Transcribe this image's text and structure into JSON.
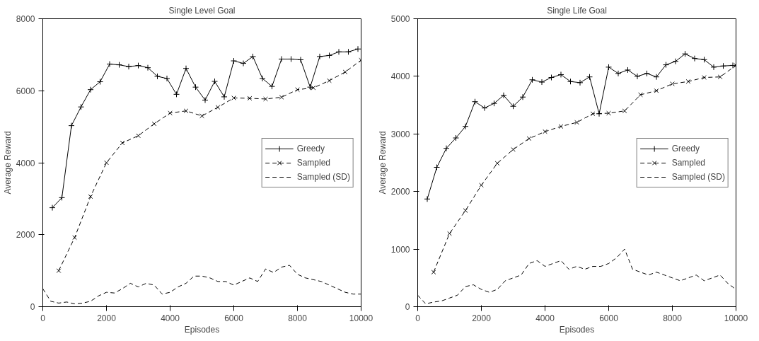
{
  "chart_data": [
    {
      "type": "line",
      "title": "Single Level Goal",
      "xlabel": "Episodes",
      "ylabel": "Average Reward",
      "xlim": [
        0,
        10000
      ],
      "ylim": [
        0,
        8000
      ],
      "xticks": [
        0,
        2000,
        4000,
        6000,
        8000,
        10000
      ],
      "yticks": [
        0,
        2000,
        4000,
        6000,
        8000
      ],
      "grid": false,
      "legend": "right",
      "series": [
        {
          "name": "Greedy",
          "color": "#000000",
          "marker": "cross",
          "line_style": "solid",
          "x": [
            300,
            600,
            900,
            1200,
            1500,
            1800,
            2100,
            2400,
            2700,
            3000,
            3300,
            3600,
            3900,
            4200,
            4500,
            4800,
            5100,
            5400,
            5700,
            6000,
            6300,
            6600,
            6900,
            7200,
            7500,
            7800,
            8100,
            8400,
            8700,
            9000,
            9300,
            9600,
            9900
          ],
          "values": [
            2750,
            3030,
            5030,
            5550,
            6030,
            6250,
            6740,
            6720,
            6670,
            6700,
            6640,
            6400,
            6340,
            5900,
            6620,
            6100,
            5740,
            6260,
            5830,
            6830,
            6760,
            6950,
            6340,
            6120,
            6880,
            6880,
            6860,
            6100,
            6950,
            6980,
            7080,
            7080,
            7160
          ]
        },
        {
          "name": "Sampled",
          "color": "#000000",
          "marker": "x",
          "line_style": "dashed",
          "x": [
            500,
            1000,
            1500,
            2000,
            2500,
            3000,
            3500,
            4000,
            4500,
            5000,
            5500,
            6000,
            6500,
            7000,
            7500,
            8000,
            8500,
            9000,
            9500,
            10000
          ],
          "values": [
            1000,
            1920,
            3060,
            4000,
            4550,
            4750,
            5080,
            5380,
            5440,
            5300,
            5540,
            5800,
            5790,
            5770,
            5820,
            6030,
            6080,
            6280,
            6520,
            6850
          ]
        },
        {
          "name": "Sampled (SD)",
          "color": "#000000",
          "marker": "none",
          "line_style": "dashed",
          "x": [
            0,
            250,
            500,
            750,
            1000,
            1250,
            1500,
            1750,
            2000,
            2250,
            2500,
            2750,
            3000,
            3250,
            3500,
            3750,
            4000,
            4250,
            4500,
            4750,
            5000,
            5250,
            5500,
            5750,
            6000,
            6250,
            6500,
            6750,
            7000,
            7250,
            7500,
            7750,
            8000,
            8250,
            8500,
            8750,
            9000,
            9250,
            9500,
            9750,
            10000
          ],
          "values": [
            500,
            150,
            100,
            130,
            80,
            100,
            150,
            300,
            400,
            380,
            500,
            650,
            550,
            650,
            600,
            350,
            400,
            550,
            650,
            850,
            850,
            800,
            700,
            700,
            600,
            700,
            800,
            700,
            1050,
            950,
            1100,
            1150,
            900,
            800,
            750,
            700,
            600,
            500,
            400,
            350,
            350
          ]
        }
      ]
    },
    {
      "type": "line",
      "title": "Single Life Goal",
      "xlabel": "Episodes",
      "ylabel": "Average Reward",
      "xlim": [
        0,
        10000
      ],
      "ylim": [
        0,
        5000
      ],
      "xticks": [
        0,
        2000,
        4000,
        6000,
        8000,
        10000
      ],
      "yticks": [
        0,
        1000,
        2000,
        3000,
        4000,
        5000
      ],
      "grid": false,
      "legend": "right",
      "series": [
        {
          "name": "Greedy",
          "color": "#000000",
          "marker": "cross",
          "line_style": "solid",
          "x": [
            300,
            600,
            900,
            1200,
            1500,
            1800,
            2100,
            2400,
            2700,
            3000,
            3300,
            3600,
            3900,
            4200,
            4500,
            4800,
            5100,
            5400,
            5700,
            6000,
            6300,
            6600,
            6900,
            7200,
            7500,
            7800,
            8100,
            8400,
            8700,
            9000,
            9300,
            9600,
            9900
          ],
          "values": [
            1870,
            2420,
            2750,
            2930,
            3130,
            3560,
            3450,
            3530,
            3670,
            3480,
            3640,
            3940,
            3900,
            3980,
            4030,
            3910,
            3890,
            3990,
            3350,
            4160,
            4050,
            4110,
            4000,
            4050,
            3990,
            4200,
            4260,
            4390,
            4310,
            4290,
            4160,
            4180,
            4190
          ]
        },
        {
          "name": "Sampled",
          "color": "#000000",
          "marker": "x",
          "line_style": "dashed",
          "x": [
            500,
            1000,
            1500,
            2000,
            2500,
            3000,
            3500,
            4000,
            4500,
            5000,
            5500,
            6000,
            6500,
            7000,
            7500,
            8000,
            8500,
            9000,
            9500,
            10000
          ],
          "values": [
            600,
            1270,
            1670,
            2110,
            2490,
            2730,
            2920,
            3040,
            3130,
            3200,
            3350,
            3360,
            3400,
            3680,
            3750,
            3870,
            3910,
            3980,
            3990,
            4190
          ]
        },
        {
          "name": "Sampled (SD)",
          "color": "#000000",
          "marker": "none",
          "line_style": "dashed",
          "x": [
            0,
            250,
            500,
            750,
            1000,
            1250,
            1500,
            1750,
            2000,
            2250,
            2500,
            2750,
            3000,
            3250,
            3500,
            3750,
            4000,
            4250,
            4500,
            4750,
            5000,
            5250,
            5500,
            5750,
            6000,
            6250,
            6500,
            6750,
            7000,
            7250,
            7500,
            7750,
            8000,
            8250,
            8500,
            8750,
            9000,
            9250,
            9500,
            9750,
            10000
          ],
          "values": [
            200,
            50,
            80,
            100,
            150,
            200,
            350,
            380,
            300,
            250,
            300,
            450,
            500,
            550,
            750,
            800,
            700,
            750,
            800,
            650,
            700,
            650,
            700,
            700,
            750,
            850,
            1000,
            650,
            600,
            550,
            600,
            550,
            500,
            450,
            500,
            550,
            450,
            500,
            550,
            400,
            300
          ]
        }
      ]
    }
  ]
}
